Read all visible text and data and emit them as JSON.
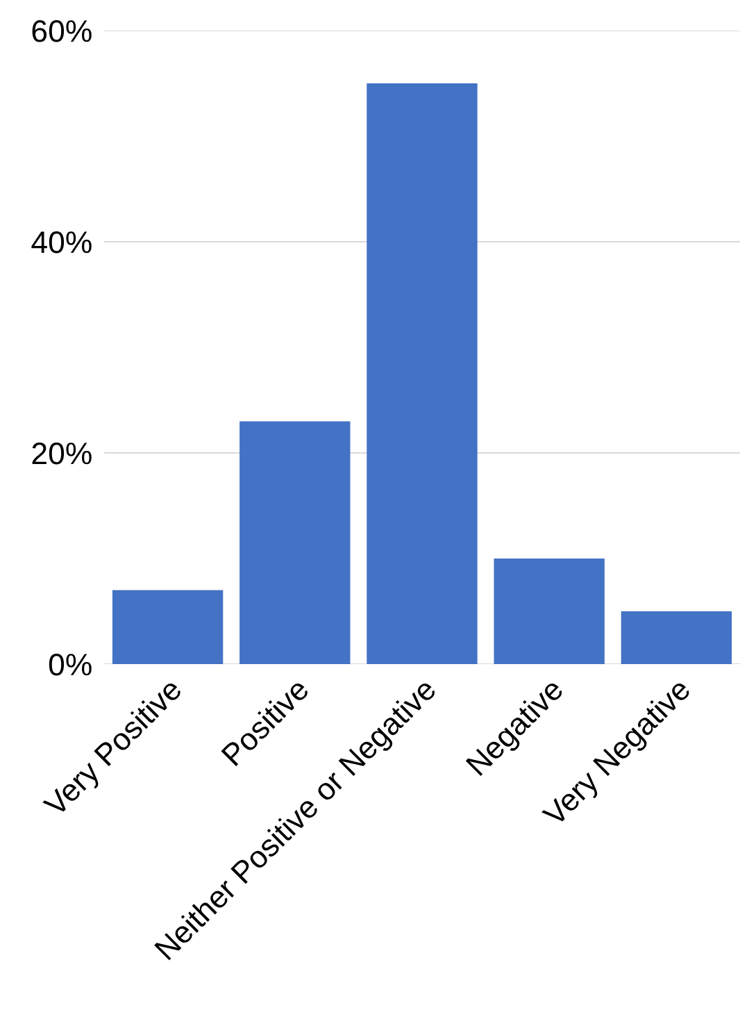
{
  "chart_data": {
    "type": "bar",
    "categories": [
      "Very Positive",
      "Positive",
      "Neither Positive or Negative",
      "Negative",
      "Very Negative"
    ],
    "values": [
      7,
      23,
      55,
      10,
      5
    ],
    "color": "#4472c4",
    "ylim": [
      0,
      60
    ],
    "yticks": [
      {
        "value": 0,
        "label": "0%"
      },
      {
        "value": 20,
        "label": "20%"
      },
      {
        "value": 40,
        "label": "40%"
      },
      {
        "value": 60,
        "label": "60%"
      }
    ],
    "grid": "y"
  }
}
